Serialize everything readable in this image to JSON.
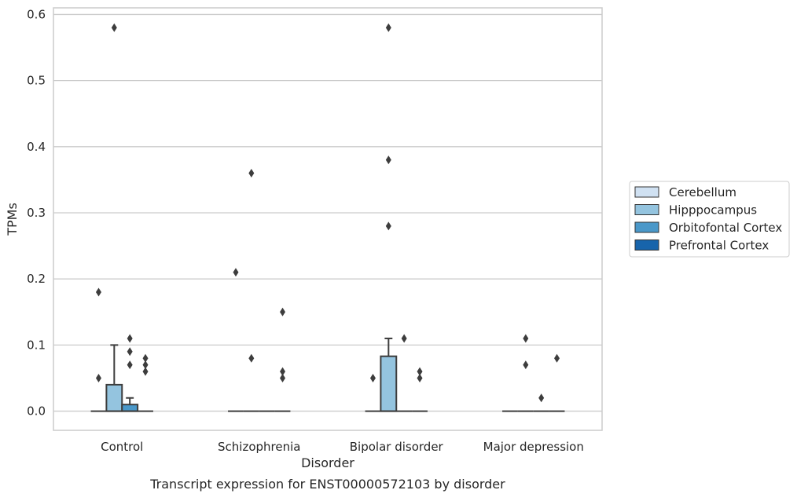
{
  "caption": "Transcript expression for ENST00000572103 by disorder",
  "chart_data": {
    "type": "box",
    "title": "",
    "xlabel": "Disorder",
    "ylabel": "TPMs",
    "ylim": [
      -0.029,
      0.61
    ],
    "yticks": [
      0.0,
      0.1,
      0.2,
      0.3,
      0.4,
      0.5,
      0.6
    ],
    "ytick_labels": [
      "0.0",
      "0.1",
      "0.2",
      "0.3",
      "0.4",
      "0.5",
      "0.6"
    ],
    "grid": "horizontal",
    "legend_position": "right",
    "categories": [
      "Control",
      "Schizophrenia",
      "Bipolar disorder",
      "Major depression"
    ],
    "series": [
      {
        "name": "Cerebellum",
        "color": "#d0e1f2",
        "boxes": [
          {
            "q1": 0,
            "median": 0,
            "q3": 0,
            "whisker_low": 0,
            "whisker_high": 0,
            "outliers": [
              0.18,
              0.05
            ]
          },
          {
            "q1": 0,
            "median": 0,
            "q3": 0,
            "whisker_low": 0,
            "whisker_high": 0,
            "outliers": [
              0.21
            ]
          },
          {
            "q1": 0,
            "median": 0,
            "q3": 0,
            "whisker_low": 0,
            "whisker_high": 0,
            "outliers": [
              0.05
            ]
          },
          {
            "q1": 0,
            "median": 0,
            "q3": 0,
            "whisker_low": 0,
            "whisker_high": 0,
            "outliers": []
          }
        ]
      },
      {
        "name": "Hipppocampus",
        "color": "#94c4df",
        "boxes": [
          {
            "q1": 0,
            "median": 0,
            "q3": 0.04,
            "whisker_low": 0,
            "whisker_high": 0.1,
            "outliers": [
              0.58
            ]
          },
          {
            "q1": 0,
            "median": 0,
            "q3": 0,
            "whisker_low": 0,
            "whisker_high": 0,
            "outliers": [
              0.36,
              0.08
            ]
          },
          {
            "q1": 0,
            "median": 0,
            "q3": 0.083,
            "whisker_low": 0,
            "whisker_high": 0.11,
            "outliers": [
              0.58,
              0.38,
              0.28
            ]
          },
          {
            "q1": 0,
            "median": 0,
            "q3": 0,
            "whisker_low": 0,
            "whisker_high": 0,
            "outliers": [
              0.11,
              0.07
            ]
          }
        ]
      },
      {
        "name": "Orbitofontal Cortex",
        "color": "#4a98c9",
        "boxes": [
          {
            "q1": 0,
            "median": 0,
            "q3": 0.01,
            "whisker_low": 0,
            "whisker_high": 0.02,
            "outliers": [
              0.11,
              0.09,
              0.07
            ]
          },
          {
            "q1": 0,
            "median": 0,
            "q3": 0,
            "whisker_low": 0,
            "whisker_high": 0,
            "outliers": []
          },
          {
            "q1": 0,
            "median": 0,
            "q3": 0,
            "whisker_low": 0,
            "whisker_high": 0,
            "outliers": [
              0.11
            ]
          },
          {
            "q1": 0,
            "median": 0,
            "q3": 0,
            "whisker_low": 0,
            "whisker_high": 0,
            "outliers": [
              0.02
            ]
          }
        ]
      },
      {
        "name": "Prefrontal Cortex",
        "color": "#1764ab",
        "boxes": [
          {
            "q1": 0,
            "median": 0,
            "q3": 0,
            "whisker_low": 0,
            "whisker_high": 0,
            "outliers": [
              0.08,
              0.07,
              0.06
            ]
          },
          {
            "q1": 0,
            "median": 0,
            "q3": 0,
            "whisker_low": 0,
            "whisker_high": 0,
            "outliers": [
              0.15,
              0.06,
              0.05
            ]
          },
          {
            "q1": 0,
            "median": 0,
            "q3": 0,
            "whisker_low": 0,
            "whisker_high": 0,
            "outliers": [
              0.06,
              0.05
            ]
          },
          {
            "q1": 0,
            "median": 0,
            "q3": 0,
            "whisker_low": 0,
            "whisker_high": 0,
            "outliers": [
              0.08
            ]
          }
        ]
      }
    ]
  }
}
